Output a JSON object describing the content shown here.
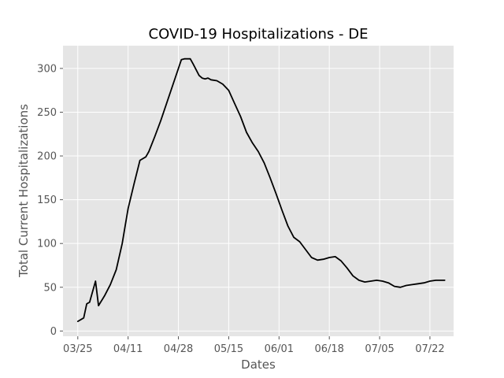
{
  "chart_data": {
    "type": "line",
    "title": "COVID-19 Hospitalizations - DE",
    "xlabel": "Dates",
    "ylabel": "Total Current Hospitalizations",
    "x_tick_labels": [
      "03/25",
      "04/11",
      "04/28",
      "05/15",
      "06/01",
      "06/18",
      "07/05",
      "07/22"
    ],
    "y_ticks": [
      0,
      50,
      100,
      150,
      200,
      250,
      300
    ],
    "xlim": [
      "2020-03-20",
      "2020-07-30"
    ],
    "ylim": [
      -6,
      326
    ],
    "grid": true,
    "background_color": "#e5e5e5",
    "line_color": "#000000",
    "series": [
      {
        "x": [
          "2020-03-25",
          "2020-03-27",
          "2020-03-28",
          "2020-03-29",
          "2020-03-31",
          "2020-04-01",
          "2020-04-03",
          "2020-04-05",
          "2020-04-07",
          "2020-04-09",
          "2020-04-10",
          "2020-04-11",
          "2020-04-13",
          "2020-04-15",
          "2020-04-17",
          "2020-04-18",
          "2020-04-20",
          "2020-04-22",
          "2020-04-24",
          "2020-04-25",
          "2020-04-27",
          "2020-04-29",
          "2020-04-30",
          "2020-05-02",
          "2020-05-03",
          "2020-05-05",
          "2020-05-06",
          "2020-05-07",
          "2020-05-08",
          "2020-05-09",
          "2020-05-11",
          "2020-05-13",
          "2020-05-15",
          "2020-05-17",
          "2020-05-19",
          "2020-05-21",
          "2020-05-23",
          "2020-05-25",
          "2020-05-27",
          "2020-05-29",
          "2020-05-31",
          "2020-06-02",
          "2020-06-04",
          "2020-06-06",
          "2020-06-08",
          "2020-06-10",
          "2020-06-12",
          "2020-06-14",
          "2020-06-16",
          "2020-06-18",
          "2020-06-20",
          "2020-06-22",
          "2020-06-24",
          "2020-06-26",
          "2020-06-28",
          "2020-06-30",
          "2020-07-02",
          "2020-07-04",
          "2020-07-06",
          "2020-07-08",
          "2020-07-10",
          "2020-07-12",
          "2020-07-14",
          "2020-07-16",
          "2020-07-18",
          "2020-07-20",
          "2020-07-22",
          "2020-07-24",
          "2020-07-26",
          "2020-07-27"
        ],
        "y": [
          11,
          15,
          31,
          33,
          57,
          29,
          40,
          53,
          70,
          100,
          120,
          140,
          168,
          195,
          199,
          205,
          222,
          240,
          260,
          270,
          290,
          310,
          311,
          311,
          305,
          292,
          289,
          288,
          289,
          287,
          286,
          282,
          275,
          260,
          245,
          227,
          215,
          205,
          192,
          175,
          157,
          138,
          120,
          107,
          102,
          93,
          84,
          81,
          82,
          84,
          85,
          80,
          72,
          63,
          58,
          56,
          57,
          58,
          57,
          55,
          51,
          50,
          52,
          53,
          54,
          55,
          57,
          58,
          58,
          58
        ]
      }
    ]
  }
}
